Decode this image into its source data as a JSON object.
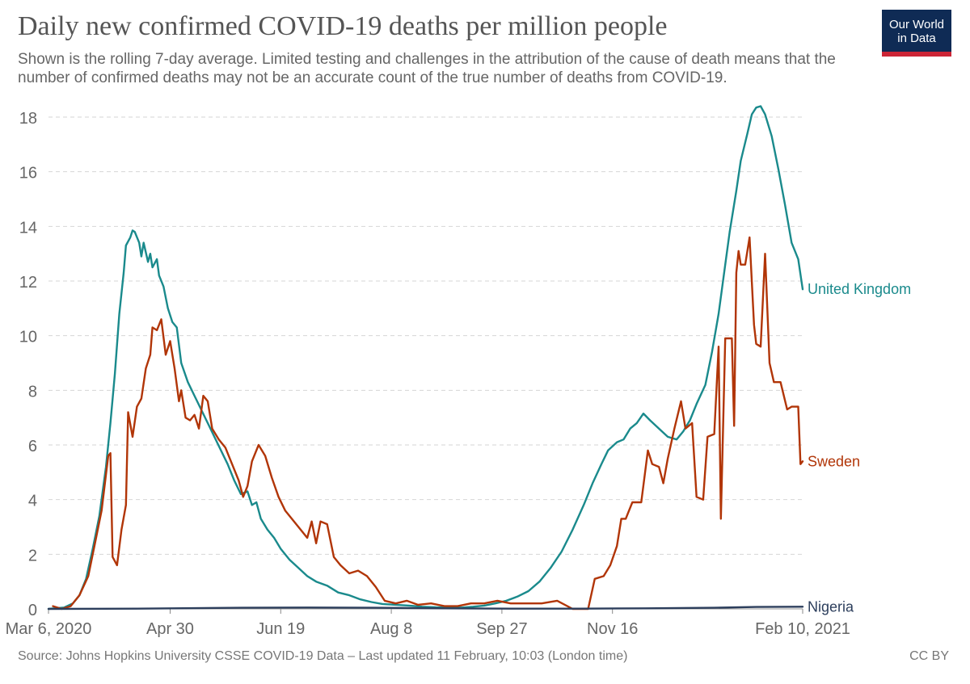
{
  "title": "Daily new confirmed COVID-19 deaths per million people",
  "subtitle": "Shown is the rolling 7-day average. Limited testing and challenges in the attribution of the cause of death means that the number of confirmed deaths may not be an accurate count of the true number of deaths from COVID-19.",
  "logo": {
    "line1": "Our World",
    "line2": "in Data",
    "bg": "#0f2b55",
    "accent": "#cc2536"
  },
  "footer": {
    "source": "Source: Johns Hopkins University CSSE COVID-19 Data – Last updated 11 February, 10:03 (London time)",
    "license": "CC BY"
  },
  "chart_data": {
    "type": "line",
    "x_type": "date",
    "xlim": [
      "2020-03-06",
      "2021-02-10"
    ],
    "ylim": [
      0,
      18
    ],
    "x_ticks": [
      {
        "date": "2020-03-06",
        "label": "Mar 6, 2020"
      },
      {
        "date": "2020-04-30",
        "label": "Apr 30"
      },
      {
        "date": "2020-06-19",
        "label": "Jun 19"
      },
      {
        "date": "2020-08-08",
        "label": "Aug 8"
      },
      {
        "date": "2020-09-27",
        "label": "Sep 27"
      },
      {
        "date": "2020-11-16",
        "label": "Nov 16"
      },
      {
        "date": "2021-02-10",
        "label": "Feb 10, 2021"
      }
    ],
    "y_ticks": [
      0,
      2,
      4,
      6,
      8,
      10,
      12,
      14,
      16,
      18
    ],
    "grid": true,
    "legend": "right-inline",
    "series": [
      {
        "name": "United Kingdom",
        "color": "#1a8a8c",
        "points": [
          [
            "2020-03-06",
            0
          ],
          [
            "2020-03-13",
            0.05
          ],
          [
            "2020-03-17",
            0.2
          ],
          [
            "2020-03-20",
            0.5
          ],
          [
            "2020-03-23",
            1.1
          ],
          [
            "2020-03-26",
            2.2
          ],
          [
            "2020-03-29",
            3.4
          ],
          [
            "2020-04-01",
            5.2
          ],
          [
            "2020-04-03",
            6.8
          ],
          [
            "2020-04-05",
            8.6
          ],
          [
            "2020-04-07",
            10.8
          ],
          [
            "2020-04-09",
            12.3
          ],
          [
            "2020-04-10",
            13.3
          ],
          [
            "2020-04-12",
            13.6
          ],
          [
            "2020-04-13",
            13.85
          ],
          [
            "2020-04-14",
            13.8
          ],
          [
            "2020-04-16",
            13.4
          ],
          [
            "2020-04-17",
            12.9
          ],
          [
            "2020-04-18",
            13.4
          ],
          [
            "2020-04-20",
            12.7
          ],
          [
            "2020-04-21",
            13.0
          ],
          [
            "2020-04-22",
            12.5
          ],
          [
            "2020-04-24",
            12.8
          ],
          [
            "2020-04-25",
            12.2
          ],
          [
            "2020-04-27",
            11.8
          ],
          [
            "2020-04-29",
            11.0
          ],
          [
            "2020-05-01",
            10.5
          ],
          [
            "2020-05-03",
            10.3
          ],
          [
            "2020-05-05",
            9.0
          ],
          [
            "2020-05-08",
            8.3
          ],
          [
            "2020-05-11",
            7.8
          ],
          [
            "2020-05-14",
            7.3
          ],
          [
            "2020-05-17",
            6.8
          ],
          [
            "2020-05-20",
            6.3
          ],
          [
            "2020-05-23",
            5.8
          ],
          [
            "2020-05-26",
            5.3
          ],
          [
            "2020-05-29",
            4.7
          ],
          [
            "2020-06-01",
            4.2
          ],
          [
            "2020-06-04",
            4.3
          ],
          [
            "2020-06-06",
            3.8
          ],
          [
            "2020-06-08",
            3.9
          ],
          [
            "2020-06-10",
            3.3
          ],
          [
            "2020-06-13",
            2.9
          ],
          [
            "2020-06-16",
            2.6
          ],
          [
            "2020-06-19",
            2.2
          ],
          [
            "2020-06-23",
            1.8
          ],
          [
            "2020-06-27",
            1.5
          ],
          [
            "2020-07-01",
            1.2
          ],
          [
            "2020-07-05",
            1.0
          ],
          [
            "2020-07-10",
            0.85
          ],
          [
            "2020-07-15",
            0.6
          ],
          [
            "2020-07-20",
            0.5
          ],
          [
            "2020-07-25",
            0.35
          ],
          [
            "2020-07-30",
            0.25
          ],
          [
            "2020-08-04",
            0.18
          ],
          [
            "2020-08-10",
            0.15
          ],
          [
            "2020-08-16",
            0.12
          ],
          [
            "2020-08-22",
            0.08
          ],
          [
            "2020-08-28",
            0.06
          ],
          [
            "2020-09-03",
            0.05
          ],
          [
            "2020-09-09",
            0.05
          ],
          [
            "2020-09-14",
            0.08
          ],
          [
            "2020-09-19",
            0.12
          ],
          [
            "2020-09-24",
            0.2
          ],
          [
            "2020-09-29",
            0.3
          ],
          [
            "2020-10-04",
            0.45
          ],
          [
            "2020-10-09",
            0.65
          ],
          [
            "2020-10-14",
            1.0
          ],
          [
            "2020-10-19",
            1.5
          ],
          [
            "2020-10-24",
            2.1
          ],
          [
            "2020-10-29",
            2.9
          ],
          [
            "2020-11-03",
            3.8
          ],
          [
            "2020-11-07",
            4.6
          ],
          [
            "2020-11-11",
            5.3
          ],
          [
            "2020-11-14",
            5.8
          ],
          [
            "2020-11-18",
            6.1
          ],
          [
            "2020-11-21",
            6.2
          ],
          [
            "2020-11-24",
            6.6
          ],
          [
            "2020-11-27",
            6.8
          ],
          [
            "2020-11-30",
            7.15
          ],
          [
            "2020-12-03",
            6.9
          ],
          [
            "2020-12-07",
            6.6
          ],
          [
            "2020-12-11",
            6.3
          ],
          [
            "2020-12-15",
            6.2
          ],
          [
            "2020-12-18",
            6.5
          ],
          [
            "2020-12-21",
            6.9
          ],
          [
            "2020-12-24",
            7.5
          ],
          [
            "2020-12-28",
            8.2
          ],
          [
            "2020-12-31",
            9.4
          ],
          [
            "2021-01-03",
            10.8
          ],
          [
            "2021-01-06",
            12.6
          ],
          [
            "2021-01-08",
            13.8
          ],
          [
            "2021-01-11",
            15.3
          ],
          [
            "2021-01-13",
            16.4
          ],
          [
            "2021-01-16",
            17.4
          ],
          [
            "2021-01-18",
            18.1
          ],
          [
            "2021-01-20",
            18.35
          ],
          [
            "2021-01-22",
            18.4
          ],
          [
            "2021-01-24",
            18.1
          ],
          [
            "2021-01-27",
            17.3
          ],
          [
            "2021-01-30",
            16.1
          ],
          [
            "2021-02-02",
            14.8
          ],
          [
            "2021-02-05",
            13.4
          ],
          [
            "2021-02-08",
            12.8
          ],
          [
            "2021-02-10",
            11.7
          ]
        ]
      },
      {
        "name": "Sweden",
        "color": "#b13507",
        "points": [
          [
            "2020-03-08",
            0.1
          ],
          [
            "2020-03-12",
            0
          ],
          [
            "2020-03-16",
            0.1
          ],
          [
            "2020-03-20",
            0.5
          ],
          [
            "2020-03-24",
            1.2
          ],
          [
            "2020-03-27",
            2.4
          ],
          [
            "2020-03-30",
            3.6
          ],
          [
            "2020-04-02",
            5.6
          ],
          [
            "2020-04-03",
            5.7
          ],
          [
            "2020-04-04",
            1.9
          ],
          [
            "2020-04-06",
            1.6
          ],
          [
            "2020-04-08",
            2.9
          ],
          [
            "2020-04-10",
            3.8
          ],
          [
            "2020-04-11",
            7.2
          ],
          [
            "2020-04-13",
            6.3
          ],
          [
            "2020-04-15",
            7.4
          ],
          [
            "2020-04-17",
            7.7
          ],
          [
            "2020-04-19",
            8.8
          ],
          [
            "2020-04-21",
            9.3
          ],
          [
            "2020-04-22",
            10.3
          ],
          [
            "2020-04-24",
            10.2
          ],
          [
            "2020-04-26",
            10.6
          ],
          [
            "2020-04-28",
            9.3
          ],
          [
            "2020-04-30",
            9.8
          ],
          [
            "2020-05-02",
            8.8
          ],
          [
            "2020-05-04",
            7.6
          ],
          [
            "2020-05-05",
            8.0
          ],
          [
            "2020-05-07",
            7.0
          ],
          [
            "2020-05-09",
            6.9
          ],
          [
            "2020-05-11",
            7.1
          ],
          [
            "2020-05-13",
            6.6
          ],
          [
            "2020-05-15",
            7.8
          ],
          [
            "2020-05-17",
            7.6
          ],
          [
            "2020-05-19",
            6.6
          ],
          [
            "2020-05-22",
            6.2
          ],
          [
            "2020-05-25",
            5.9
          ],
          [
            "2020-05-28",
            5.3
          ],
          [
            "2020-05-31",
            4.7
          ],
          [
            "2020-06-02",
            4.1
          ],
          [
            "2020-06-04",
            4.5
          ],
          [
            "2020-06-06",
            5.4
          ],
          [
            "2020-06-09",
            6.0
          ],
          [
            "2020-06-12",
            5.6
          ],
          [
            "2020-06-15",
            4.8
          ],
          [
            "2020-06-18",
            4.1
          ],
          [
            "2020-06-21",
            3.6
          ],
          [
            "2020-06-24",
            3.3
          ],
          [
            "2020-06-27",
            3.0
          ],
          [
            "2020-07-01",
            2.6
          ],
          [
            "2020-07-03",
            3.2
          ],
          [
            "2020-07-05",
            2.4
          ],
          [
            "2020-07-07",
            3.2
          ],
          [
            "2020-07-10",
            3.1
          ],
          [
            "2020-07-13",
            1.9
          ],
          [
            "2020-07-16",
            1.6
          ],
          [
            "2020-07-20",
            1.3
          ],
          [
            "2020-07-24",
            1.4
          ],
          [
            "2020-07-28",
            1.2
          ],
          [
            "2020-08-01",
            0.8
          ],
          [
            "2020-08-05",
            0.3
          ],
          [
            "2020-08-10",
            0.2
          ],
          [
            "2020-08-15",
            0.3
          ],
          [
            "2020-08-20",
            0.15
          ],
          [
            "2020-08-26",
            0.2
          ],
          [
            "2020-09-01",
            0.1
          ],
          [
            "2020-09-07",
            0.1
          ],
          [
            "2020-09-13",
            0.2
          ],
          [
            "2020-09-19",
            0.2
          ],
          [
            "2020-09-25",
            0.3
          ],
          [
            "2020-10-01",
            0.2
          ],
          [
            "2020-10-08",
            0.2
          ],
          [
            "2020-10-15",
            0.2
          ],
          [
            "2020-10-22",
            0.3
          ],
          [
            "2020-10-29",
            0
          ],
          [
            "2020-11-05",
            0
          ],
          [
            "2020-11-08",
            1.1
          ],
          [
            "2020-11-12",
            1.2
          ],
          [
            "2020-11-15",
            1.6
          ],
          [
            "2020-11-18",
            2.3
          ],
          [
            "2020-11-20",
            3.3
          ],
          [
            "2020-11-22",
            3.3
          ],
          [
            "2020-11-25",
            3.9
          ],
          [
            "2020-11-29",
            3.9
          ],
          [
            "2020-12-02",
            5.8
          ],
          [
            "2020-12-04",
            5.3
          ],
          [
            "2020-12-07",
            5.2
          ],
          [
            "2020-12-09",
            4.6
          ],
          [
            "2020-12-11",
            5.5
          ],
          [
            "2020-12-14",
            6.6
          ],
          [
            "2020-12-17",
            7.6
          ],
          [
            "2020-12-19",
            6.6
          ],
          [
            "2020-12-22",
            6.8
          ],
          [
            "2020-12-24",
            4.1
          ],
          [
            "2020-12-27",
            4.0
          ],
          [
            "2020-12-29",
            6.3
          ],
          [
            "2021-01-01",
            6.4
          ],
          [
            "2021-01-03",
            9.6
          ],
          [
            "2021-01-04",
            3.3
          ],
          [
            "2021-01-06",
            9.9
          ],
          [
            "2021-01-09",
            9.9
          ],
          [
            "2021-01-10",
            6.7
          ],
          [
            "2021-01-11",
            12.3
          ],
          [
            "2021-01-12",
            13.1
          ],
          [
            "2021-01-13",
            12.6
          ],
          [
            "2021-01-15",
            12.6
          ],
          [
            "2021-01-17",
            13.6
          ],
          [
            "2021-01-19",
            10.4
          ],
          [
            "2021-01-20",
            9.7
          ],
          [
            "2021-01-22",
            9.6
          ],
          [
            "2021-01-24",
            13.0
          ],
          [
            "2021-01-26",
            9.0
          ],
          [
            "2021-01-28",
            8.3
          ],
          [
            "2021-01-31",
            8.3
          ],
          [
            "2021-02-03",
            7.3
          ],
          [
            "2021-02-05",
            7.4
          ],
          [
            "2021-02-08",
            7.4
          ],
          [
            "2021-02-09",
            5.3
          ],
          [
            "2021-02-10",
            5.4
          ]
        ]
      },
      {
        "name": "Nigeria",
        "color": "#2c3e5c",
        "points": [
          [
            "2020-03-06",
            0
          ],
          [
            "2020-04-15",
            0.01
          ],
          [
            "2020-05-01",
            0.02
          ],
          [
            "2020-06-01",
            0.04
          ],
          [
            "2020-07-01",
            0.05
          ],
          [
            "2020-08-01",
            0.04
          ],
          [
            "2020-09-01",
            0.02
          ],
          [
            "2020-10-01",
            0.01
          ],
          [
            "2020-11-01",
            0.01
          ],
          [
            "2020-12-01",
            0.02
          ],
          [
            "2021-01-01",
            0.04
          ],
          [
            "2021-01-20",
            0.07
          ],
          [
            "2021-02-10",
            0.08
          ]
        ]
      }
    ]
  }
}
